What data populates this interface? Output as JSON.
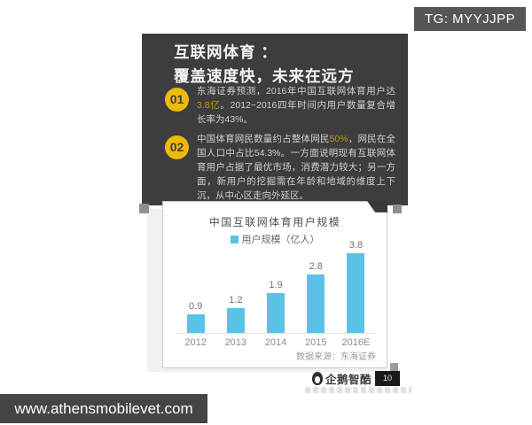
{
  "tg_badge": {
    "label": "TG: MYYJJPP"
  },
  "watermark": {
    "label": "www.athensmobilevet.com"
  },
  "card": {
    "title_line1": "互联网体育 ：",
    "title_line2": "覆盖速度快，未来在远方",
    "points": [
      {
        "number": "01",
        "prefix": "东海证券预测，2016年中国互联网体育用户达",
        "highlight": "3.8亿",
        "suffix": "。2012~2016四年时间内用户数量复合增长率为43%。"
      },
      {
        "number": "02",
        "prefix": "中国体育网民数量约占整体网民",
        "highlight": "50%",
        "suffix": "，网民在全国人口中占比54.3%。一方面说明现有互联网体育用户占据了最优市场，消费潜力较大；另一方面，新用户的挖掘需在年龄和地域的维度上下沉，从中心区走向外延区。"
      }
    ],
    "colors": {
      "card_bg": "#3d3d3f",
      "badge_bg": "#edba0c",
      "highlight": "#c9980e",
      "body_text": "#cfcfcf"
    }
  },
  "chart_data": {
    "type": "bar",
    "title": "中国互联网体育用户规模",
    "legend": "用户规模（亿人）",
    "categories": [
      "2012",
      "2013",
      "2014",
      "2015",
      "2016E"
    ],
    "values": [
      0.9,
      1.2,
      1.9,
      2.8,
      3.8
    ],
    "ylim": [
      0,
      4
    ],
    "grid": false,
    "legend_position": "top",
    "bar_color": "#5bc2e7",
    "source": "数据来源：东海证券"
  },
  "logo": {
    "name": "企鹅智酷",
    "badge": "10"
  }
}
